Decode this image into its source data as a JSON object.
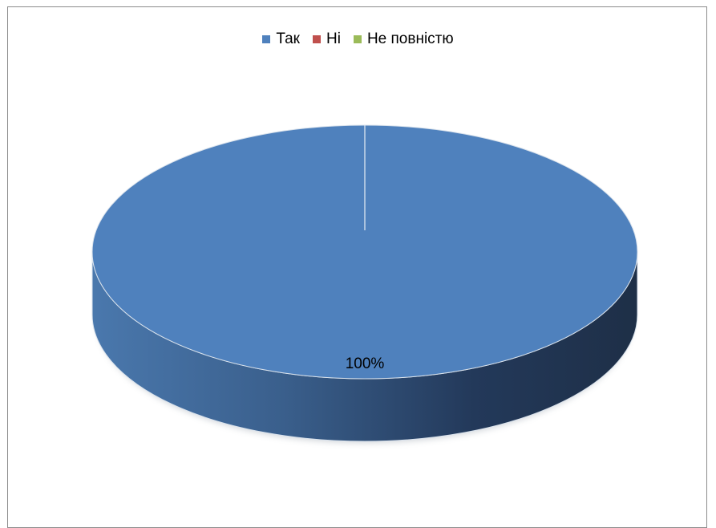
{
  "chart_data": {
    "type": "pie",
    "style": "3d",
    "title": "",
    "categories": [
      "Так",
      "Ні",
      "Не повністю"
    ],
    "values": [
      100,
      0,
      0
    ],
    "colors": [
      "#4f81bd",
      "#c0504d",
      "#9bbb59"
    ],
    "data_labels": [
      "100%"
    ],
    "legend_position": "top"
  }
}
